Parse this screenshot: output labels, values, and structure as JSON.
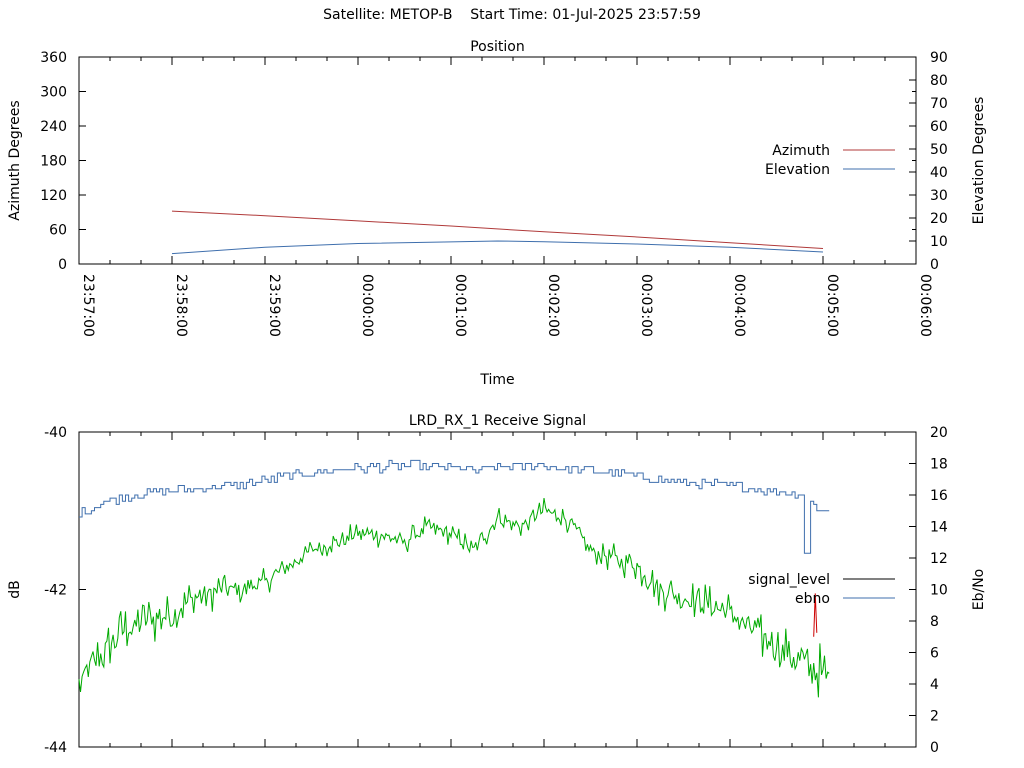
{
  "header": {
    "satellite": "Satellite: METOP-B",
    "start_time": "Start Time: 01-Jul-2025 23:57:59"
  },
  "colors": {
    "azimuth": "#b03a3a",
    "elevation": "#3f6fad",
    "signal_level": "#000000",
    "ebno": "#3f6fad",
    "signal_green": "#00aa00",
    "signal_red": "#cc0000"
  },
  "chart_data": [
    {
      "type": "line",
      "title": "Position",
      "xlabel": "Time",
      "ylabel": "Azimuth Degrees",
      "y2label": "Elevation Degrees",
      "xlim": [
        "23:57:00",
        "00:06:00"
      ],
      "x_ticks": [
        "23:57:00",
        "23:58:00",
        "23:59:00",
        "00:00:00",
        "00:01:00",
        "00:02:00",
        "00:03:00",
        "00:04:00",
        "00:05:00",
        "00:06:00"
      ],
      "ylim": [
        0,
        360
      ],
      "y_ticks": [
        "0",
        "60",
        "120",
        "180",
        "240",
        "300",
        "360"
      ],
      "y2lim": [
        0,
        90
      ],
      "y2_ticks": [
        "0",
        "10",
        "20",
        "30",
        "40",
        "50",
        "60",
        "70",
        "80",
        "90"
      ],
      "legend_position": "right",
      "grid": false,
      "series": [
        {
          "name": "Azimuth",
          "axis": "y1",
          "x": [
            "23:58:00",
            "23:59:00",
            "00:00:00",
            "00:01:00",
            "00:02:00",
            "00:03:00",
            "00:04:00",
            "00:05:00"
          ],
          "values": [
            92,
            84,
            75,
            66,
            56,
            47,
            37,
            27
          ]
        },
        {
          "name": "Elevation",
          "axis": "y2",
          "x": [
            "23:58:00",
            "23:59:00",
            "00:00:00",
            "00:01:00",
            "00:01:30",
            "00:02:00",
            "00:03:00",
            "00:04:00",
            "00:05:00"
          ],
          "values": [
            4.5,
            7.3,
            8.9,
            9.6,
            10.0,
            9.7,
            8.7,
            7.3,
            5.2
          ]
        }
      ]
    },
    {
      "type": "line",
      "title": "LRD_RX_1 Receive Signal",
      "ylabel": "dB",
      "y2label": "Eb/No",
      "ylim": [
        -44,
        -40
      ],
      "y_ticks": [
        "-44",
        "-42",
        "-40"
      ],
      "y2lim": [
        0,
        20
      ],
      "y2_ticks": [
        "0",
        "2",
        "4",
        "6",
        "8",
        "10",
        "12",
        "14",
        "16",
        "18",
        "20"
      ],
      "xlim": [
        "23:57:00",
        "00:06:00"
      ],
      "legend_position": "right",
      "grid": false,
      "series": [
        {
          "name": "signal_level",
          "axis": "y1",
          "x": [
            "23:57:00",
            "23:57:15",
            "23:57:30",
            "23:57:45",
            "23:58:00",
            "23:58:15",
            "23:58:30",
            "23:58:45",
            "23:59:00",
            "23:59:15",
            "23:59:30",
            "23:59:45",
            "00:00:00",
            "00:00:15",
            "00:00:30",
            "00:00:45",
            "00:01:00",
            "00:01:15",
            "00:01:30",
            "00:01:45",
            "00:02:00",
            "00:02:15",
            "00:02:30",
            "00:02:45",
            "00:03:00",
            "00:03:15",
            "00:03:30",
            "00:03:45",
            "00:04:00",
            "00:04:15",
            "00:04:30",
            "00:04:45",
            "00:05:00"
          ],
          "values": [
            -43.2,
            -42.8,
            -42.5,
            -42.4,
            -42.3,
            -42.1,
            -42.0,
            -42.0,
            -41.9,
            -41.7,
            -41.5,
            -41.4,
            -41.3,
            -41.3,
            -41.4,
            -41.2,
            -41.3,
            -41.5,
            -41.1,
            -41.2,
            -41.0,
            -41.1,
            -41.5,
            -41.6,
            -41.7,
            -42.0,
            -42.1,
            -42.2,
            -42.3,
            -42.5,
            -42.7,
            -42.9,
            -43.1
          ]
        },
        {
          "name": "ebno",
          "axis": "y2",
          "x": [
            "23:57:00",
            "23:57:15",
            "23:57:30",
            "23:57:45",
            "23:58:00",
            "23:58:15",
            "23:58:30",
            "23:58:45",
            "23:59:00",
            "23:59:15",
            "23:59:30",
            "23:59:45",
            "00:00:00",
            "00:00:15",
            "00:00:30",
            "00:00:45",
            "00:01:00",
            "00:01:15",
            "00:01:30",
            "00:01:45",
            "00:02:00",
            "00:02:15",
            "00:02:30",
            "00:02:45",
            "00:03:00",
            "00:03:15",
            "00:03:30",
            "00:03:45",
            "00:04:00",
            "00:04:15",
            "00:04:30",
            "00:04:45",
            "00:05:00"
          ],
          "values": [
            14.8,
            15.5,
            15.9,
            16.2,
            16.3,
            16.4,
            16.5,
            16.7,
            16.9,
            17.2,
            17.4,
            17.6,
            17.7,
            17.8,
            17.9,
            17.8,
            17.8,
            17.5,
            17.8,
            17.8,
            17.9,
            17.6,
            17.6,
            17.4,
            17.2,
            17.0,
            16.8,
            16.7,
            16.6,
            16.4,
            16.2,
            16.1,
            15.0
          ]
        }
      ]
    }
  ]
}
